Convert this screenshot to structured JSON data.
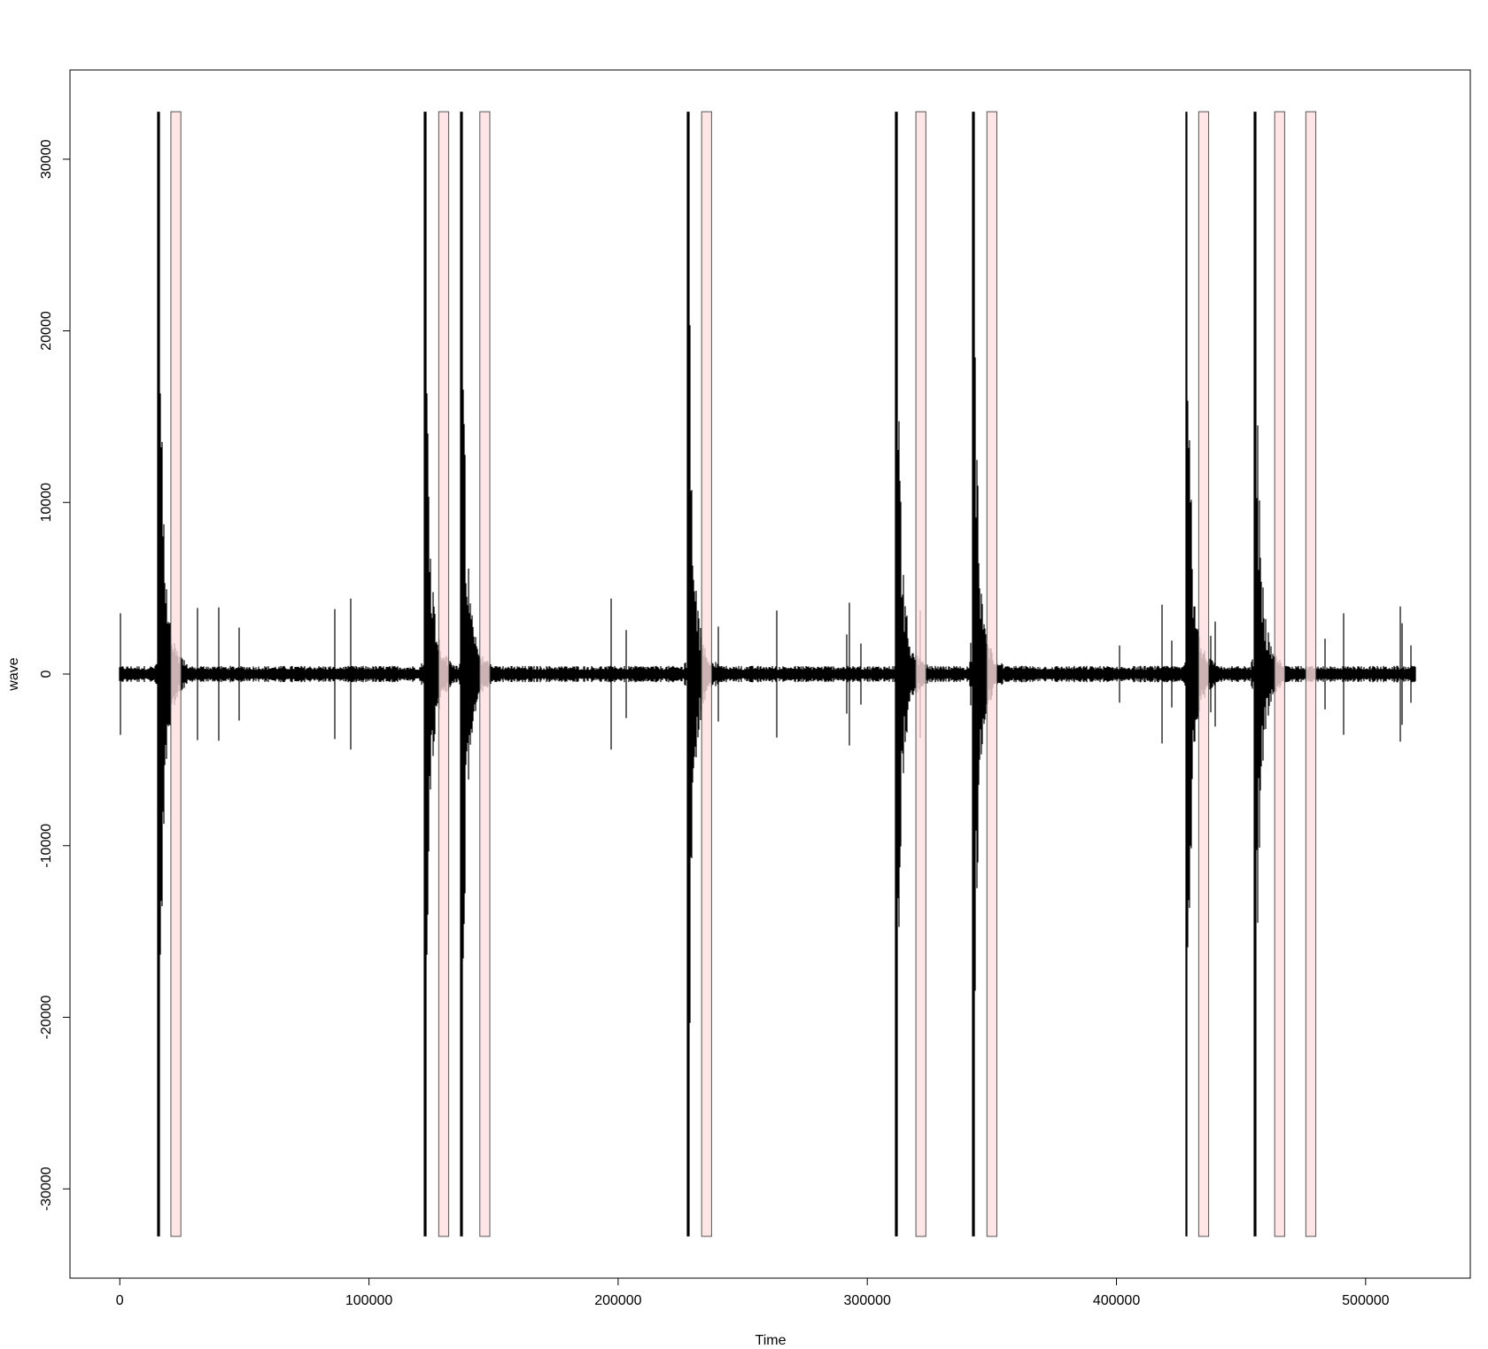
{
  "chart_data": {
    "type": "line",
    "title": "",
    "xlabel": "Time",
    "ylabel": "wave",
    "xlim": [
      -20000,
      542000
    ],
    "ylim": [
      -35200,
      35200
    ],
    "x_ticks": [
      0,
      100000,
      200000,
      300000,
      400000,
      500000
    ],
    "x_tick_labels": [
      "0",
      "100000",
      "200000",
      "300000",
      "400000",
      "500000"
    ],
    "y_ticks": [
      -30000,
      -20000,
      -10000,
      0,
      10000,
      20000,
      30000
    ],
    "y_tick_labels": [
      "-30000",
      "-20000",
      "-10000",
      "0",
      "10000",
      "20000",
      "30000"
    ],
    "series": [
      {
        "x_range": [
          0,
          520000
        ],
        "baseline_amplitude": 400,
        "color": "#000000",
        "spikes": [
          {
            "x": 15500,
            "max": 32767,
            "min": -32767
          },
          {
            "x": 122500,
            "max": 32767,
            "min": -32767
          },
          {
            "x": 137000,
            "max": 32767,
            "min": -32767
          },
          {
            "x": 228000,
            "max": 32767,
            "min": -32767
          },
          {
            "x": 311500,
            "max": 32767,
            "min": -32767
          },
          {
            "x": 342500,
            "max": 32767,
            "min": -32767
          },
          {
            "x": 428000,
            "max": 32767,
            "min": -32767
          },
          {
            "x": 455500,
            "max": 32767,
            "min": -32767
          }
        ]
      }
    ],
    "highlight_regions": [
      {
        "start": 20500,
        "end": 24500,
        "ymin": -32767,
        "ymax": 32767
      },
      {
        "start": 128000,
        "end": 132000,
        "ymin": -32767,
        "ymax": 32767
      },
      {
        "start": 144500,
        "end": 148500,
        "ymin": -32767,
        "ymax": 32767
      },
      {
        "start": 233500,
        "end": 237500,
        "ymin": -32767,
        "ymax": 32767
      },
      {
        "start": 319500,
        "end": 323500,
        "ymin": -32767,
        "ymax": 32767
      },
      {
        "start": 348000,
        "end": 352000,
        "ymin": -32767,
        "ymax": 32767
      },
      {
        "start": 433000,
        "end": 437000,
        "ymin": -32767,
        "ymax": 32767
      },
      {
        "start": 463500,
        "end": 467500,
        "ymin": -32767,
        "ymax": 32767
      },
      {
        "start": 476000,
        "end": 480000,
        "ymin": -32767,
        "ymax": 32767
      }
    ],
    "highlight_fill": "#ffdede",
    "highlight_stroke": "#555555",
    "grid": false,
    "legend": "none"
  }
}
